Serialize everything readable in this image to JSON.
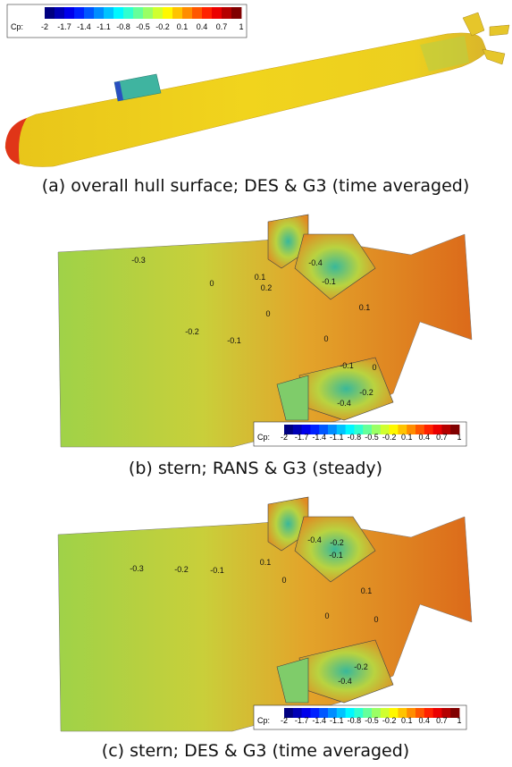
{
  "panels": [
    {
      "caption": "(a) overall hull surface; DES & G3 (time averaged)",
      "colorbar": {
        "label": "Cp:",
        "ticks": [
          -2,
          -1.7,
          -1.4,
          -1.1,
          -0.8,
          -0.5,
          -0.2,
          0.1,
          0.4,
          0.7,
          1
        ]
      }
    },
    {
      "caption": "(b) stern; RANS & G3 (steady)",
      "colorbar": {
        "label": "Cp:",
        "ticks": [
          -2,
          -1.7,
          -1.4,
          -1.1,
          -0.8,
          -0.5,
          -0.2,
          0.1,
          0.4,
          0.7,
          1
        ]
      },
      "contour_labels": [
        -0.3,
        -0.2,
        -0.1,
        0,
        0.1,
        0.2,
        -0.4,
        -0.1,
        0,
        0.1,
        0,
        -0.1,
        0,
        -0.2,
        -0.4
      ]
    },
    {
      "caption": "(c) stern; DES & G3 (time averaged)",
      "colorbar": {
        "label": "Cp:",
        "ticks": [
          -2,
          -1.7,
          -1.4,
          -1.1,
          -0.8,
          -0.5,
          -0.2,
          0.1,
          0.4,
          0.7,
          1
        ]
      },
      "contour_labels": [
        -0.3,
        -0.2,
        -0.1,
        0.1,
        -0.4,
        -0.2,
        -0.1,
        0,
        0.1,
        0,
        0,
        -0.2,
        -0.4
      ]
    }
  ]
}
